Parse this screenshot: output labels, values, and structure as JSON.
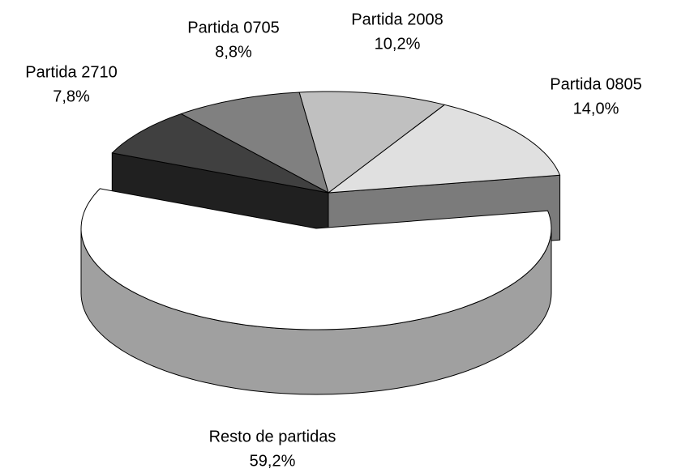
{
  "chart_data": {
    "type": "pie3d",
    "categories": [
      "Partida 0805",
      "Partida 2008",
      "Partida 0705",
      "Partida 2710",
      "Resto de partidas"
    ],
    "values": [
      14.0,
      10.2,
      8.8,
      7.8,
      59.2
    ],
    "value_labels": [
      "14,0%",
      "10,2%",
      "8,8%",
      "7,8%",
      "59,2%"
    ],
    "colors": [
      "#e0e0e0",
      "#c0c0c0",
      "#808080",
      "#404040",
      "#ffffff"
    ]
  }
}
